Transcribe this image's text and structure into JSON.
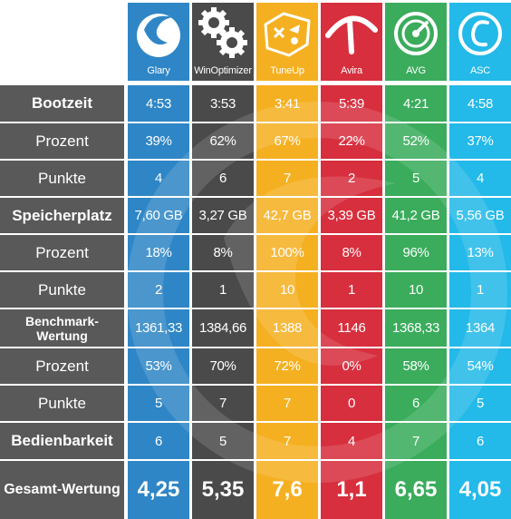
{
  "products": [
    {
      "name": "Glary",
      "color": "#2f86c6",
      "icon": "glary-icon"
    },
    {
      "name": "WinOptimizer",
      "color": "#4a4a4a",
      "icon": "gears-icon"
    },
    {
      "name": "TuneUp",
      "color": "#f5b021",
      "icon": "tuneup-icon"
    },
    {
      "name": "Avira",
      "color": "#d72f3e",
      "icon": "avira-umbrella-icon"
    },
    {
      "name": "AVG",
      "color": "#3aac5c",
      "icon": "avg-speedometer-icon"
    },
    {
      "name": "ASC",
      "color": "#23b9e8",
      "icon": "asc-logo-icon"
    }
  ],
  "rows": [
    {
      "label": "Bootzeit",
      "style": "bold",
      "values": [
        "4:53",
        "3:53",
        "3:41",
        "5:39",
        "4:21",
        "4:58"
      ]
    },
    {
      "label": "Prozent",
      "style": "normal",
      "values": [
        "39%",
        "62%",
        "67%",
        "22%",
        "52%",
        "37%"
      ]
    },
    {
      "label": "Punkte",
      "style": "normal",
      "values": [
        "4",
        "6",
        "7",
        "2",
        "5",
        "4"
      ]
    },
    {
      "label": "Speicherplatz",
      "style": "bold",
      "values": [
        "7,60 GB",
        "3,27 GB",
        "42,7 GB",
        "3,39 GB",
        "41,2 GB",
        "5,56 GB"
      ]
    },
    {
      "label": "Prozent",
      "style": "normal",
      "values": [
        "18%",
        "8%",
        "100%",
        "8%",
        "96%",
        "13%"
      ]
    },
    {
      "label": "Punkte",
      "style": "normal",
      "values": [
        "2",
        "1",
        "10",
        "1",
        "10",
        "1"
      ]
    },
    {
      "label": "Benchmark-Wertung",
      "style": "bold-small",
      "values": [
        "1361,33",
        "1384,66",
        "1388",
        "1146",
        "1368,33",
        "1364"
      ]
    },
    {
      "label": "Prozent",
      "style": "normal",
      "values": [
        "53%",
        "70%",
        "72%",
        "0%",
        "58%",
        "54%"
      ]
    },
    {
      "label": "Punkte",
      "style": "normal",
      "values": [
        "5",
        "7",
        "7",
        "0",
        "6",
        "5"
      ]
    },
    {
      "label": "Bedienbarkeit",
      "style": "bold",
      "values": [
        "6",
        "5",
        "7",
        "4",
        "7",
        "6"
      ]
    },
    {
      "label": "Gesamt-Wertung",
      "style": "total",
      "values": [
        "4,25",
        "5,35",
        "7,6",
        "1,1",
        "6,65",
        "4,05"
      ]
    }
  ],
  "colors": {
    "label_bg": "#595959",
    "alt_shades": [
      "#2f86c6",
      "#4a4a4a",
      "#f5b021",
      "#d72f3e",
      "#3aac5c",
      "#23b9e8"
    ]
  }
}
